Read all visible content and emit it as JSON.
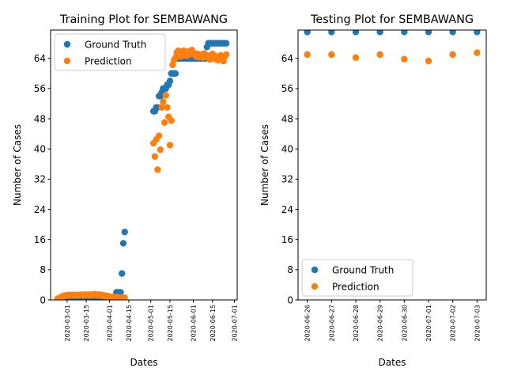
{
  "colors": {
    "ground_truth": "#1f77b4",
    "prediction": "#ff7f0e",
    "axes": "#000000",
    "legend_border": "#cccccc"
  },
  "chart_data": [
    {
      "type": "scatter",
      "title": "Training Plot for SEMBAWANG",
      "xlabel": "Dates",
      "ylabel": "Number of Cases",
      "x_axis_type": "date",
      "xlim": [
        "2020-02-18",
        "2020-07-03"
      ],
      "ylim": [
        0,
        71.5
      ],
      "x_ticks": [
        "2020-03-01",
        "2020-03-15",
        "2020-04-01",
        "2020-04-15",
        "2020-05-01",
        "2020-05-15",
        "2020-06-01",
        "2020-06-15",
        "2020-07-01"
      ],
      "y_ticks": [
        0,
        8,
        16,
        24,
        32,
        40,
        48,
        56,
        64
      ],
      "grid": false,
      "legend_position": "upper left",
      "series": [
        {
          "name": "Ground Truth",
          "color": "#1f77b4",
          "points": [
            [
              "2020-02-23",
              0
            ],
            [
              "2020-02-24",
              0
            ],
            [
              "2020-02-25",
              0
            ],
            [
              "2020-02-26",
              0
            ],
            [
              "2020-02-27",
              0
            ],
            [
              "2020-02-28",
              0
            ],
            [
              "2020-02-29",
              0
            ],
            [
              "2020-03-01",
              0
            ],
            [
              "2020-03-02",
              0
            ],
            [
              "2020-03-03",
              0
            ],
            [
              "2020-03-04",
              0
            ],
            [
              "2020-03-05",
              0
            ],
            [
              "2020-03-06",
              0
            ],
            [
              "2020-03-07",
              0
            ],
            [
              "2020-03-08",
              0
            ],
            [
              "2020-03-09",
              0
            ],
            [
              "2020-03-10",
              0
            ],
            [
              "2020-03-11",
              0
            ],
            [
              "2020-03-12",
              0
            ],
            [
              "2020-03-13",
              0
            ],
            [
              "2020-03-14",
              0
            ],
            [
              "2020-03-15",
              0
            ],
            [
              "2020-03-16",
              0
            ],
            [
              "2020-03-17",
              0
            ],
            [
              "2020-03-18",
              0
            ],
            [
              "2020-03-19",
              0
            ],
            [
              "2020-03-20",
              0
            ],
            [
              "2020-03-21",
              0
            ],
            [
              "2020-03-22",
              0
            ],
            [
              "2020-03-23",
              0
            ],
            [
              "2020-03-24",
              0
            ],
            [
              "2020-03-25",
              0
            ],
            [
              "2020-03-26",
              0
            ],
            [
              "2020-03-27",
              0
            ],
            [
              "2020-03-28",
              0
            ],
            [
              "2020-03-29",
              0
            ],
            [
              "2020-03-30",
              0
            ],
            [
              "2020-03-31",
              0
            ],
            [
              "2020-04-01",
              0
            ],
            [
              "2020-04-02",
              0
            ],
            [
              "2020-04-03",
              0
            ],
            [
              "2020-04-04",
              0
            ],
            [
              "2020-04-05",
              0
            ],
            [
              "2020-04-06",
              2
            ],
            [
              "2020-04-07",
              2
            ],
            [
              "2020-04-08",
              2
            ],
            [
              "2020-04-09",
              2
            ],
            [
              "2020-04-10",
              7
            ],
            [
              "2020-04-11",
              15
            ],
            [
              "2020-04-12",
              18
            ],
            [
              "2020-05-03",
              50
            ],
            [
              "2020-05-04",
              50
            ],
            [
              "2020-05-05",
              51
            ],
            [
              "2020-05-06",
              51
            ],
            [
              "2020-05-07",
              54
            ],
            [
              "2020-05-08",
              54
            ],
            [
              "2020-05-09",
              55
            ],
            [
              "2020-05-10",
              56
            ],
            [
              "2020-05-11",
              56
            ],
            [
              "2020-05-12",
              56
            ],
            [
              "2020-05-13",
              57
            ],
            [
              "2020-05-14",
              57
            ],
            [
              "2020-05-15",
              58
            ],
            [
              "2020-05-16",
              60
            ],
            [
              "2020-05-17",
              60
            ],
            [
              "2020-05-18",
              60
            ],
            [
              "2020-05-19",
              60
            ],
            [
              "2020-05-20",
              64
            ],
            [
              "2020-05-21",
              64
            ],
            [
              "2020-05-22",
              64
            ],
            [
              "2020-05-23",
              64
            ],
            [
              "2020-05-24",
              64
            ],
            [
              "2020-05-25",
              64
            ],
            [
              "2020-05-26",
              64
            ],
            [
              "2020-05-27",
              64
            ],
            [
              "2020-05-28",
              64
            ],
            [
              "2020-05-29",
              64
            ],
            [
              "2020-05-30",
              64
            ],
            [
              "2020-05-31",
              64
            ],
            [
              "2020-06-01",
              64
            ],
            [
              "2020-06-02",
              64
            ],
            [
              "2020-06-03",
              64
            ],
            [
              "2020-06-04",
              64
            ],
            [
              "2020-06-05",
              64
            ],
            [
              "2020-06-06",
              64
            ],
            [
              "2020-06-07",
              64
            ],
            [
              "2020-06-08",
              64
            ],
            [
              "2020-06-09",
              64
            ],
            [
              "2020-06-10",
              64
            ],
            [
              "2020-06-11",
              67
            ],
            [
              "2020-06-12",
              68
            ],
            [
              "2020-06-13",
              68
            ],
            [
              "2020-06-14",
              68
            ],
            [
              "2020-06-15",
              68
            ],
            [
              "2020-06-16",
              68
            ],
            [
              "2020-06-17",
              68
            ],
            [
              "2020-06-18",
              68
            ],
            [
              "2020-06-19",
              68
            ],
            [
              "2020-06-20",
              68
            ],
            [
              "2020-06-21",
              68
            ],
            [
              "2020-06-22",
              68
            ],
            [
              "2020-06-23",
              68
            ],
            [
              "2020-06-24",
              68
            ],
            [
              "2020-06-25",
              68
            ]
          ]
        },
        {
          "name": "Prediction",
          "color": "#ff7f0e",
          "points": [
            [
              "2020-02-23",
              0.3
            ],
            [
              "2020-02-24",
              0.4
            ],
            [
              "2020-02-25",
              0.6
            ],
            [
              "2020-02-26",
              0.8
            ],
            [
              "2020-02-27",
              1.0
            ],
            [
              "2020-02-28",
              1.1
            ],
            [
              "2020-02-29",
              1.2
            ],
            [
              "2020-03-01",
              1.2
            ],
            [
              "2020-03-02",
              1.3
            ],
            [
              "2020-03-03",
              1.2
            ],
            [
              "2020-03-04",
              1.3
            ],
            [
              "2020-03-05",
              1.2
            ],
            [
              "2020-03-06",
              1.3
            ],
            [
              "2020-03-07",
              1.2
            ],
            [
              "2020-03-08",
              1.3
            ],
            [
              "2020-03-09",
              1.2
            ],
            [
              "2020-03-10",
              1.3
            ],
            [
              "2020-03-11",
              1.4
            ],
            [
              "2020-03-12",
              1.3
            ],
            [
              "2020-03-13",
              1.2
            ],
            [
              "2020-03-14",
              1.4
            ],
            [
              "2020-03-15",
              1.3
            ],
            [
              "2020-03-16",
              1.4
            ],
            [
              "2020-03-17",
              1.2
            ],
            [
              "2020-03-18",
              1.4
            ],
            [
              "2020-03-19",
              1.3
            ],
            [
              "2020-03-20",
              1.4
            ],
            [
              "2020-03-21",
              1.5
            ],
            [
              "2020-03-22",
              1.3
            ],
            [
              "2020-03-23",
              1.4
            ],
            [
              "2020-03-24",
              1.2
            ],
            [
              "2020-03-25",
              1.4
            ],
            [
              "2020-03-26",
              1.3
            ],
            [
              "2020-03-27",
              1.1
            ],
            [
              "2020-03-28",
              1.2
            ],
            [
              "2020-03-29",
              1.0
            ],
            [
              "2020-03-30",
              0.9
            ],
            [
              "2020-03-31",
              1.0
            ],
            [
              "2020-04-01",
              0.8
            ],
            [
              "2020-04-02",
              0.7
            ],
            [
              "2020-04-03",
              0.8
            ],
            [
              "2020-04-04",
              0.6
            ],
            [
              "2020-04-05",
              0.7
            ],
            [
              "2020-04-06",
              0.6
            ],
            [
              "2020-04-07",
              0.7
            ],
            [
              "2020-04-08",
              0.6
            ],
            [
              "2020-04-09",
              0.5
            ],
            [
              "2020-04-10",
              0.7
            ],
            [
              "2020-04-11",
              0.5
            ],
            [
              "2020-04-12",
              0.6
            ],
            [
              "2020-05-03",
              41.5
            ],
            [
              "2020-05-04",
              38
            ],
            [
              "2020-05-05",
              42.5
            ],
            [
              "2020-05-06",
              34.5
            ],
            [
              "2020-05-07",
              43.5
            ],
            [
              "2020-05-08",
              39.8
            ],
            [
              "2020-05-09",
              51
            ],
            [
              "2020-05-10",
              52.5
            ],
            [
              "2020-05-11",
              47
            ],
            [
              "2020-05-12",
              54.2
            ],
            [
              "2020-05-13",
              51
            ],
            [
              "2020-05-14",
              48.5
            ],
            [
              "2020-05-15",
              41
            ],
            [
              "2020-05-16",
              47.5
            ],
            [
              "2020-05-17",
              62.3
            ],
            [
              "2020-05-18",
              63.5
            ],
            [
              "2020-05-19",
              64.2
            ],
            [
              "2020-05-20",
              65.5
            ],
            [
              "2020-05-21",
              66
            ],
            [
              "2020-05-22",
              65
            ],
            [
              "2020-05-23",
              64.5
            ],
            [
              "2020-05-24",
              65.8
            ],
            [
              "2020-05-25",
              66
            ],
            [
              "2020-05-26",
              65.5
            ],
            [
              "2020-05-27",
              64.7
            ],
            [
              "2020-05-28",
              65.8
            ],
            [
              "2020-05-29",
              65
            ],
            [
              "2020-05-30",
              65.5
            ],
            [
              "2020-05-31",
              66.2
            ],
            [
              "2020-06-01",
              65.5
            ],
            [
              "2020-06-02",
              65
            ],
            [
              "2020-06-03",
              64.5
            ],
            [
              "2020-06-04",
              65.2
            ],
            [
              "2020-06-05",
              64.3
            ],
            [
              "2020-06-06",
              65
            ],
            [
              "2020-06-07",
              64.7
            ],
            [
              "2020-06-08",
              64.2
            ],
            [
              "2020-06-09",
              65.3
            ],
            [
              "2020-06-10",
              64.5
            ],
            [
              "2020-06-11",
              64.8
            ],
            [
              "2020-06-12",
              64.2
            ],
            [
              "2020-06-13",
              63.7
            ],
            [
              "2020-06-14",
              64.5
            ],
            [
              "2020-06-15",
              65.2
            ],
            [
              "2020-06-16",
              64
            ],
            [
              "2020-06-17",
              63.8
            ],
            [
              "2020-06-18",
              64.5
            ],
            [
              "2020-06-19",
              63.5
            ],
            [
              "2020-06-20",
              64
            ],
            [
              "2020-06-21",
              64.8
            ],
            [
              "2020-06-22",
              64.2
            ],
            [
              "2020-06-23",
              63.3
            ],
            [
              "2020-06-24",
              64.5
            ],
            [
              "2020-06-25",
              65
            ]
          ]
        }
      ]
    },
    {
      "type": "scatter",
      "title": "Testing Plot for SEMBAWANG",
      "xlabel": "Dates",
      "ylabel": "Number of Cases",
      "x_axis_type": "date",
      "xlim": [
        "2020-06-25.62",
        "2020-07-03.38"
      ],
      "ylim": [
        0,
        71.5
      ],
      "x_ticks": [
        "2020-06-26",
        "2020-06-27",
        "2020-06-28",
        "2020-06-29",
        "2020-06-30",
        "2020-07-01",
        "2020-07-02",
        "2020-07-03"
      ],
      "y_ticks": [
        0,
        8,
        16,
        24,
        32,
        40,
        48,
        56,
        64
      ],
      "grid": false,
      "legend_position": "lower left",
      "series": [
        {
          "name": "Ground Truth",
          "color": "#1f77b4",
          "points": [
            [
              "2020-06-26",
              71
            ],
            [
              "2020-06-27",
              71
            ],
            [
              "2020-06-28",
              71
            ],
            [
              "2020-06-29",
              71
            ],
            [
              "2020-06-30",
              71
            ],
            [
              "2020-07-01",
              71
            ],
            [
              "2020-07-02",
              71
            ],
            [
              "2020-07-03",
              71
            ]
          ]
        },
        {
          "name": "Prediction",
          "color": "#ff7f0e",
          "points": [
            [
              "2020-06-26",
              65
            ],
            [
              "2020-06-27",
              65
            ],
            [
              "2020-06-28",
              64.2
            ],
            [
              "2020-06-29",
              65
            ],
            [
              "2020-06-30",
              63.8
            ],
            [
              "2020-07-01",
              63.3
            ],
            [
              "2020-07-02",
              65
            ],
            [
              "2020-07-03",
              65.5
            ]
          ]
        }
      ]
    }
  ]
}
